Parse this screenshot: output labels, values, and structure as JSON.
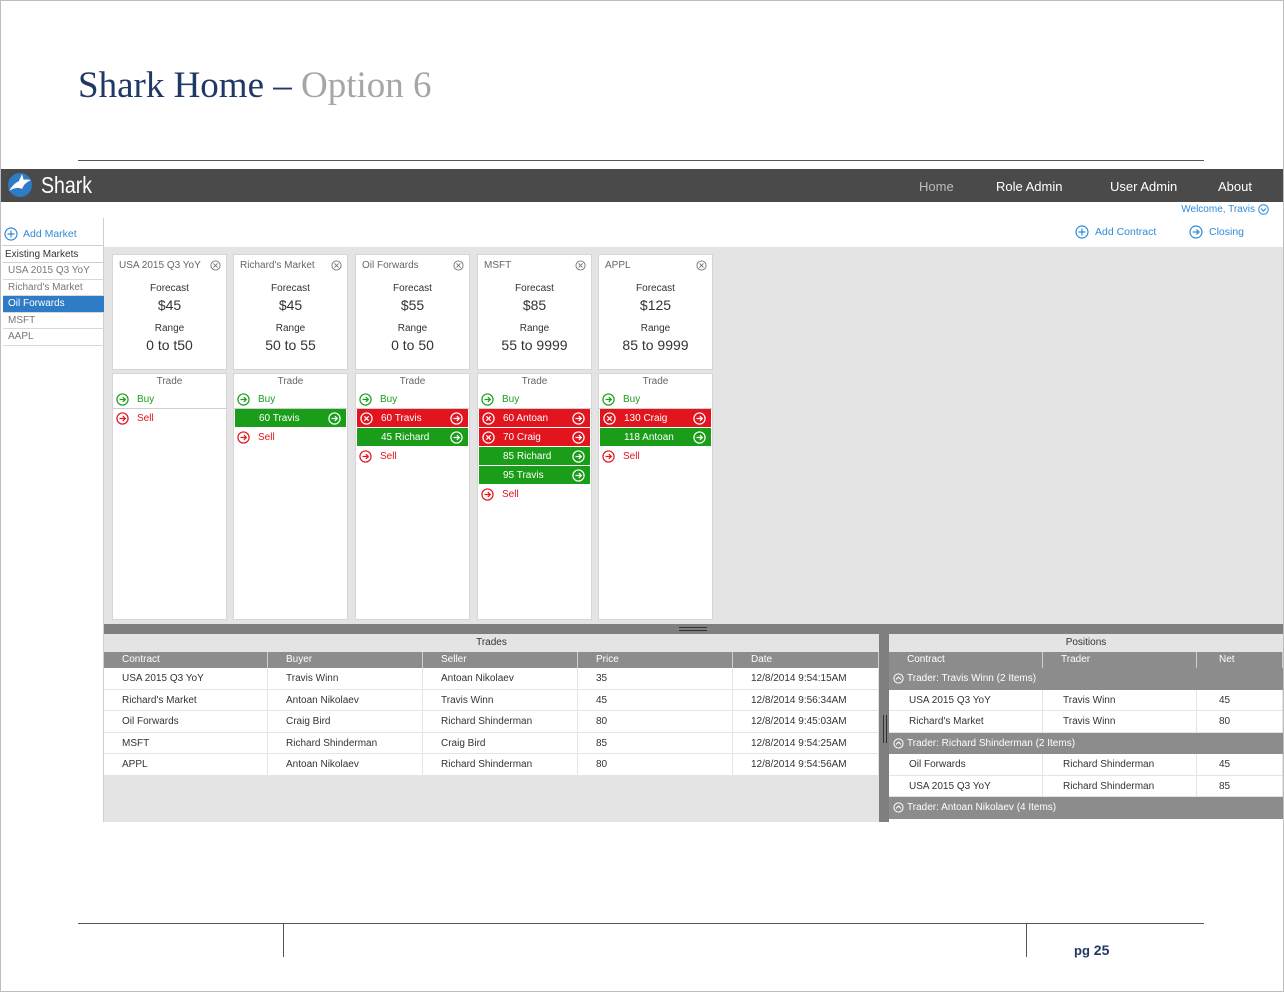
{
  "slide": {
    "title_main": "Shark Home",
    "title_dash": "–",
    "title_option": "Option 6",
    "page_prefix": "pg",
    "page_number": "25"
  },
  "app": {
    "brand": "Shark",
    "nav": [
      "Home",
      "Role Admin",
      "User Admin",
      "About"
    ],
    "active_nav": "Home",
    "welcome": "Welcome, Travis"
  },
  "sidebar": {
    "add_market": "Add Market",
    "existing_title": "Existing Markets",
    "markets": [
      "USA 2015 Q3 YoY",
      "Richard's Market",
      "Oil Forwards",
      "MSFT",
      "AAPL"
    ],
    "selected": "Oil Forwards"
  },
  "toolbar": {
    "add_contract": "Add Contract",
    "closing": "Closing"
  },
  "labels": {
    "forecast": "Forecast",
    "range": "Range",
    "trade": "Trade",
    "buy": "Buy",
    "sell": "Sell"
  },
  "markets": [
    {
      "name": "USA 2015 Q3 YoY",
      "forecast": "$45",
      "range": "0 to t50",
      "asks": [],
      "bids": []
    },
    {
      "name": "Richard's Market",
      "forecast": "$45",
      "range": "50 to 55",
      "asks": [],
      "bids": [
        "60 Travis"
      ]
    },
    {
      "name": "Oil Forwards",
      "forecast": "$55",
      "range": "0 to 50",
      "asks": [
        "60 Travis"
      ],
      "bids": [
        "45 Richard"
      ]
    },
    {
      "name": "MSFT",
      "forecast": "$85",
      "range": "55 to 9999",
      "asks": [
        "60 Antoan",
        "70 Craig"
      ],
      "bids": [
        "85 Richard",
        "95 Travis"
      ]
    },
    {
      "name": "APPL",
      "forecast": "$125",
      "range": "85 to 9999",
      "asks": [
        "130 Craig"
      ],
      "bids": [
        "118 Antoan"
      ]
    }
  ],
  "trades": {
    "title": "Trades",
    "columns": [
      "Contract",
      "Buyer",
      "Seller",
      "Price",
      "Date"
    ],
    "rows": [
      [
        "USA 2015 Q3 YoY",
        "Travis Winn",
        "Antoan Nikolaev",
        "35",
        "12/8/2014 9:54:15AM"
      ],
      [
        "Richard's Market",
        "Antoan Nikolaev",
        "Travis Winn",
        "45",
        "12/8/2014 9:56:34AM"
      ],
      [
        "Oil Forwards",
        "Craig Bird",
        "Richard Shinderman",
        "80",
        "12/8/2014 9:45:03AM"
      ],
      [
        "MSFT",
        "Richard Shinderman",
        "Craig Bird",
        "85",
        "12/8/2014 9:54:25AM"
      ],
      [
        "APPL",
        "Antoan Nikolaev",
        "Richard Shinderman",
        "80",
        "12/8/2014 9:54:56AM"
      ]
    ]
  },
  "positions": {
    "title": "Positions",
    "columns": [
      "Contract",
      "Trader",
      "Net"
    ],
    "groups": [
      {
        "label": "Trader: Travis Winn (2 Items)",
        "rows": [
          [
            "USA 2015 Q3 YoY",
            "Travis Winn",
            "45"
          ],
          [
            "Richard's Market",
            "Travis Winn",
            "80"
          ]
        ]
      },
      {
        "label": "Trader: Richard Shinderman (2 Items)",
        "rows": [
          [
            "Oil Forwards",
            "Richard Shinderman",
            "45"
          ],
          [
            "USA 2015 Q3 YoY",
            "Richard Shinderman",
            "85"
          ]
        ]
      },
      {
        "label": "Trader: Antoan Nikolaev  (4 Items)",
        "rows": []
      }
    ]
  }
}
